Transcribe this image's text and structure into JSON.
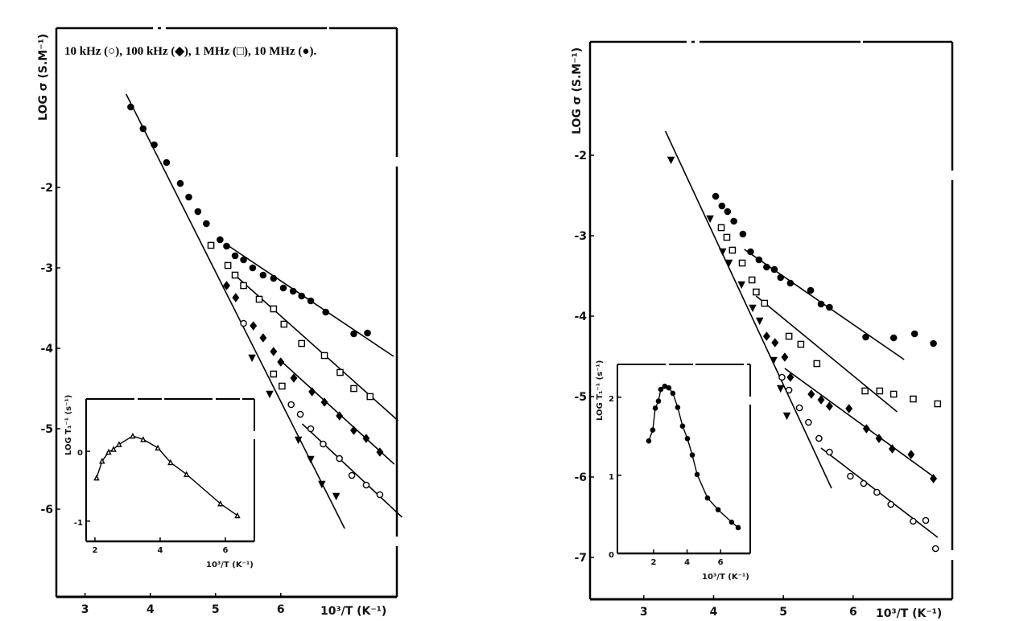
{
  "chart_data": [
    {
      "id": "left-main",
      "type": "scatter",
      "legend_text": "10 kHz (○), 100 kHz (◆), 1 MHz (□), 10 MHz (●).",
      "legend_placement": "top",
      "xlabel": "10³/T (K⁻¹)",
      "ylabel": "LOG σ (S.M⁻¹)",
      "xlim": [
        2.56,
        7.78
      ],
      "ylim": [
        -7.09,
        -0.02
      ],
      "xticks": [
        {
          "v": 3,
          "label": "3"
        },
        {
          "v": 4,
          "label": "4"
        },
        {
          "v": 5,
          "label": "5"
        },
        {
          "v": 6,
          "label": "6"
        }
      ],
      "yticks": [
        {
          "v": -2,
          "label": "-2"
        },
        {
          "v": -3,
          "label": "-3"
        },
        {
          "v": -4,
          "label": "-4"
        },
        {
          "v": -5,
          "label": "-5"
        },
        {
          "v": -6,
          "label": "-6"
        }
      ],
      "grid": false,
      "series": [
        {
          "name": "10 kHz",
          "marker": "open-circle",
          "points": [
            [
              5.43,
              -3.69
            ],
            [
              6.16,
              -4.7
            ],
            [
              6.3,
              -4.82
            ],
            [
              6.46,
              -5.0
            ],
            [
              6.65,
              -5.19
            ],
            [
              6.9,
              -5.37
            ],
            [
              7.09,
              -5.58
            ],
            [
              7.31,
              -5.7
            ],
            [
              7.52,
              -5.82
            ]
          ]
        },
        {
          "name": "100 kHz",
          "marker": "filled-diamond",
          "points": [
            [
              5.17,
              -3.22
            ],
            [
              5.31,
              -3.37
            ],
            [
              5.58,
              -3.72
            ],
            [
              5.73,
              -3.87
            ],
            [
              5.89,
              -4.04
            ],
            [
              6.0,
              -4.17
            ],
            [
              6.2,
              -4.37
            ],
            [
              6.48,
              -4.54
            ],
            [
              6.67,
              -4.67
            ],
            [
              6.9,
              -4.84
            ],
            [
              7.12,
              -5.02
            ],
            [
              7.31,
              -5.12
            ],
            [
              7.52,
              -5.29
            ]
          ]
        },
        {
          "name": "1 MHz",
          "marker": "open-square",
          "points": [
            [
              4.93,
              -2.72
            ],
            [
              5.19,
              -2.97
            ],
            [
              5.3,
              -3.09
            ],
            [
              5.43,
              -3.22
            ],
            [
              5.67,
              -3.39
            ],
            [
              5.89,
              -3.51
            ],
            [
              6.05,
              -3.7
            ],
            [
              6.32,
              -3.94
            ],
            [
              6.67,
              -4.09
            ],
            [
              6.91,
              -4.3
            ],
            [
              7.12,
              -4.5
            ],
            [
              7.37,
              -4.6
            ],
            [
              5.89,
              -4.32
            ],
            [
              6.02,
              -4.47
            ]
          ]
        },
        {
          "name": "10 MHz",
          "marker": "filled-circle",
          "points": [
            [
              3.7,
              -1.0
            ],
            [
              3.89,
              -1.27
            ],
            [
              4.06,
              -1.47
            ],
            [
              4.25,
              -1.69
            ],
            [
              4.46,
              -1.95
            ],
            [
              4.59,
              -2.12
            ],
            [
              4.73,
              -2.3
            ],
            [
              4.86,
              -2.45
            ],
            [
              5.07,
              -2.65
            ],
            [
              5.17,
              -2.73
            ],
            [
              5.3,
              -2.85
            ],
            [
              5.43,
              -2.9
            ],
            [
              5.57,
              -3.0
            ],
            [
              5.73,
              -3.09
            ],
            [
              5.89,
              -3.13
            ],
            [
              6.04,
              -3.25
            ],
            [
              6.19,
              -3.29
            ],
            [
              6.32,
              -3.35
            ],
            [
              6.46,
              -3.41
            ],
            [
              6.69,
              -3.55
            ],
            [
              7.12,
              -3.82
            ],
            [
              7.33,
              -3.81
            ]
          ]
        },
        {
          "marker": "filled-triangle",
          "points": [
            [
              5.56,
              -4.12
            ],
            [
              5.83,
              -4.57
            ],
            [
              6.27,
              -5.14
            ],
            [
              6.46,
              -5.38
            ],
            [
              6.63,
              -5.69
            ],
            [
              6.85,
              -5.84
            ]
          ]
        }
      ],
      "fit_lines": [
        [
          [
            3.63,
            -0.84
          ],
          [
            6.98,
            -6.24
          ]
        ],
        [
          [
            5.15,
            -2.7
          ],
          [
            7.73,
            -4.1
          ]
        ],
        [
          [
            5.27,
            -3.07
          ],
          [
            7.8,
            -4.9
          ]
        ],
        [
          [
            5.98,
            -4.14
          ],
          [
            7.74,
            -5.44
          ]
        ],
        [
          [
            6.33,
            -4.94
          ],
          [
            7.86,
            -6.1
          ]
        ]
      ]
    },
    {
      "id": "left-inset",
      "type": "line",
      "xlabel": "10³/T (K⁻¹)",
      "ylabel": "LOG T₁⁻¹ (s⁻¹)",
      "xlim": [
        1.73,
        6.89
      ],
      "ylim": [
        -1.29,
        0.75
      ],
      "xticks": [
        {
          "v": 2,
          "label": "2"
        },
        {
          "v": 4,
          "label": "4"
        },
        {
          "v": 6,
          "label": "6"
        }
      ],
      "yticks": [
        {
          "v": 0,
          "label": "0"
        },
        {
          "v": -1,
          "label": "-1"
        }
      ],
      "grid": false,
      "series": [
        {
          "marker": "open-triangle",
          "points": [
            [
              2.05,
              -0.38
            ],
            [
              2.22,
              -0.14
            ],
            [
              2.42,
              -0.01
            ],
            [
              2.57,
              0.03
            ],
            [
              2.74,
              0.1
            ],
            [
              3.16,
              0.22
            ],
            [
              3.48,
              0.17
            ],
            [
              3.93,
              0.05
            ],
            [
              4.32,
              -0.16
            ],
            [
              4.81,
              -0.33
            ],
            [
              5.85,
              -0.75
            ],
            [
              6.37,
              -0.92
            ]
          ]
        }
      ]
    },
    {
      "id": "right-main",
      "type": "scatter",
      "xlabel": "10³/T (K⁻¹)",
      "ylabel": "LOG σ (S.M⁻¹)",
      "xlim": [
        2.23,
        7.42
      ],
      "ylim": [
        -7.52,
        -0.59
      ],
      "xticks": [
        {
          "v": 3,
          "label": "3"
        },
        {
          "v": 4,
          "label": "4"
        },
        {
          "v": 5,
          "label": "5"
        },
        {
          "v": 6,
          "label": "6"
        }
      ],
      "yticks": [
        {
          "v": -2,
          "label": "-2"
        },
        {
          "v": -3,
          "label": "-3"
        },
        {
          "v": -4,
          "label": "-4"
        },
        {
          "v": -5,
          "label": "-5"
        },
        {
          "v": -6,
          "label": "-6"
        },
        {
          "v": -7,
          "label": "-7"
        }
      ],
      "grid": false,
      "series": [
        {
          "name": "10 kHz",
          "marker": "open-circle",
          "points": [
            [
              4.98,
              -4.76
            ],
            [
              5.08,
              -4.92
            ],
            [
              5.23,
              -5.14
            ],
            [
              5.36,
              -5.32
            ],
            [
              5.51,
              -5.52
            ],
            [
              5.66,
              -5.69
            ],
            [
              5.96,
              -5.99
            ],
            [
              6.15,
              -6.08
            ],
            [
              6.34,
              -6.19
            ],
            [
              6.54,
              -6.34
            ],
            [
              6.86,
              -6.55
            ],
            [
              7.04,
              -6.54
            ],
            [
              7.18,
              -6.89
            ]
          ]
        },
        {
          "name": "100 kHz",
          "marker": "filled-diamond",
          "points": [
            [
              4.76,
              -4.25
            ],
            [
              4.88,
              -4.33
            ],
            [
              5.02,
              -4.51
            ],
            [
              5.1,
              -4.76
            ],
            [
              5.4,
              -4.97
            ],
            [
              5.54,
              -5.04
            ],
            [
              5.66,
              -5.12
            ],
            [
              5.94,
              -5.15
            ],
            [
              6.19,
              -5.4
            ],
            [
              6.37,
              -5.52
            ],
            [
              6.56,
              -5.65
            ],
            [
              6.83,
              -5.72
            ],
            [
              7.15,
              -6.02
            ]
          ]
        },
        {
          "name": "1 MHz",
          "marker": "open-square",
          "points": [
            [
              4.11,
              -2.9
            ],
            [
              4.19,
              -3.02
            ],
            [
              4.27,
              -3.18
            ],
            [
              4.41,
              -3.34
            ],
            [
              4.55,
              -3.55
            ],
            [
              4.61,
              -3.7
            ],
            [
              4.73,
              -3.84
            ],
            [
              5.08,
              -4.25
            ],
            [
              5.25,
              -4.35
            ],
            [
              5.48,
              -4.59
            ],
            [
              6.17,
              -4.93
            ],
            [
              6.38,
              -4.93
            ],
            [
              6.58,
              -4.97
            ],
            [
              6.86,
              -5.03
            ],
            [
              7.21,
              -5.09
            ]
          ]
        },
        {
          "name": "10 MHz",
          "marker": "filled-circle",
          "points": [
            [
              4.03,
              -2.51
            ],
            [
              4.12,
              -2.63
            ],
            [
              4.2,
              -2.7
            ],
            [
              4.29,
              -2.82
            ],
            [
              4.42,
              -2.98
            ],
            [
              4.53,
              -3.2
            ],
            [
              4.65,
              -3.3
            ],
            [
              4.76,
              -3.39
            ],
            [
              4.87,
              -3.42
            ],
            [
              4.96,
              -3.52
            ],
            [
              5.1,
              -3.59
            ],
            [
              5.39,
              -3.68
            ],
            [
              5.54,
              -3.85
            ],
            [
              5.66,
              -3.89
            ],
            [
              6.18,
              -4.26
            ],
            [
              6.58,
              -4.27
            ],
            [
              6.88,
              -4.22
            ],
            [
              7.15,
              -4.34
            ]
          ]
        },
        {
          "marker": "filled-triangle",
          "points": [
            [
              3.39,
              -2.06
            ],
            [
              3.95,
              -2.79
            ],
            [
              4.13,
              -3.2
            ],
            [
              4.22,
              -3.34
            ],
            [
              4.4,
              -3.61
            ],
            [
              4.56,
              -3.9
            ],
            [
              4.66,
              -4.06
            ],
            [
              4.86,
              -4.55
            ],
            [
              4.96,
              -4.9
            ],
            [
              5.05,
              -5.24
            ]
          ]
        }
      ],
      "fit_lines": [
        [
          [
            3.31,
            -1.7
          ],
          [
            5.69,
            -6.14
          ]
        ],
        [
          [
            4.44,
            -3.17
          ],
          [
            6.73,
            -4.54
          ]
        ],
        [
          [
            4.61,
            -3.75
          ],
          [
            6.63,
            -5.19
          ]
        ],
        [
          [
            5.02,
            -4.65
          ],
          [
            7.19,
            -6.02
          ]
        ],
        [
          [
            5.54,
            -5.64
          ],
          [
            7.21,
            -6.75
          ]
        ]
      ]
    },
    {
      "id": "right-inset",
      "type": "line",
      "xlabel": "10³/T (K⁻¹)",
      "ylabel": "LOG T₁⁻¹ (s⁻¹)",
      "xlim": [
        -0.16,
        7.77
      ],
      "ylim": [
        0,
        2.42
      ],
      "xticks": [
        {
          "v": 2,
          "label": "2"
        },
        {
          "v": 4,
          "label": "4"
        },
        {
          "v": 6,
          "label": "6"
        }
      ],
      "yticks": [
        {
          "v": 0,
          "label": "0"
        },
        {
          "v": 1,
          "label": "1"
        },
        {
          "v": 2,
          "label": "2"
        }
      ],
      "grid": false,
      "series": [
        {
          "marker": "filled-circle",
          "points": [
            [
              1.71,
              1.44
            ],
            [
              1.95,
              1.58
            ],
            [
              2.1,
              1.86
            ],
            [
              2.29,
              1.95
            ],
            [
              2.43,
              2.1
            ],
            [
              2.67,
              2.14
            ],
            [
              2.91,
              2.12
            ],
            [
              3.15,
              2.05
            ],
            [
              3.44,
              1.87
            ],
            [
              3.73,
              1.63
            ],
            [
              4.02,
              1.47
            ],
            [
              4.31,
              1.26
            ],
            [
              4.6,
              1.01
            ],
            [
              5.22,
              0.71
            ],
            [
              5.85,
              0.56
            ],
            [
              6.66,
              0.4
            ],
            [
              7.05,
              0.33
            ]
          ]
        }
      ]
    }
  ]
}
